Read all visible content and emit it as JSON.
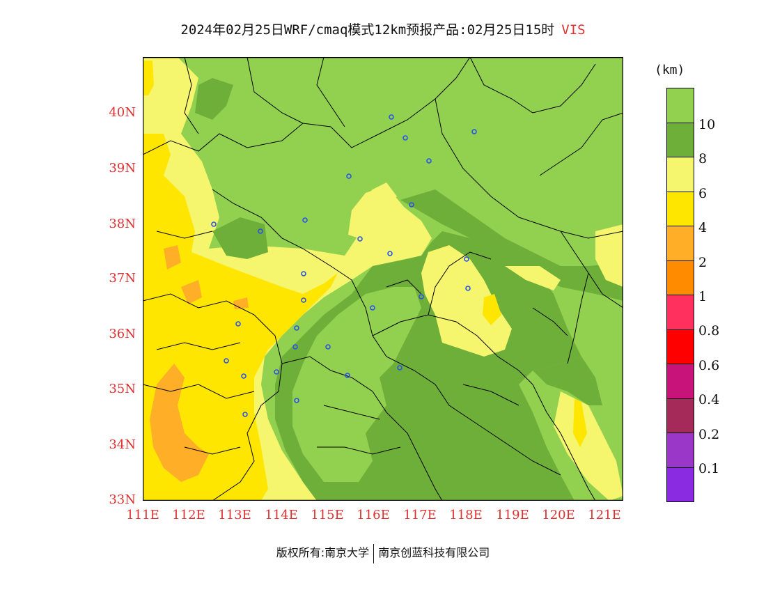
{
  "header": {
    "title": "2024年02月25日WRF/cmaq模式12km预报产品:02月25日15时",
    "variable": "VIS"
  },
  "map": {
    "lat_ticks": [
      "40N",
      "39N",
      "38N",
      "37N",
      "36N",
      "35N",
      "34N",
      "33N"
    ],
    "lon_ticks": [
      "111E",
      "112E",
      "113E",
      "114E",
      "115E",
      "116E",
      "117E",
      "118E",
      "119E",
      "120E",
      "121E"
    ],
    "extent": {
      "lon_min": 111,
      "lon_max": 121.4,
      "lat_min": 33,
      "lat_max": 41
    }
  },
  "legend": {
    "unit": "(km)",
    "labels": [
      "10",
      "8",
      "6",
      "4",
      "2",
      "1",
      "0.8",
      "0.6",
      "0.4",
      "0.2",
      "0.1"
    ],
    "colors": [
      "#92d050",
      "#6eaf3a",
      "#f5f56e",
      "#ffe600",
      "#ffae28",
      "#ff8c00",
      "#ff2f5e",
      "#ff0000",
      "#c8137a",
      "#a52a5a",
      "#9b37c8",
      "#8a2be2"
    ]
  },
  "footer": {
    "owner": "版权所有:南京大学",
    "company": "南京创蓝科技有限公司"
  }
}
